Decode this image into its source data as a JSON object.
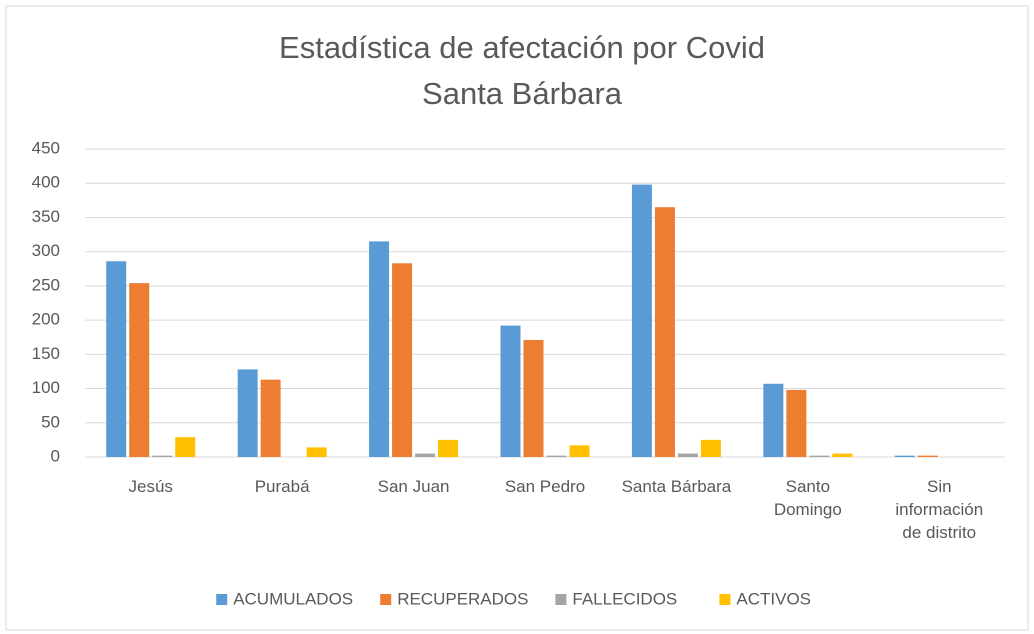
{
  "chart_data": {
    "type": "bar",
    "title": [
      "Estadística de afectación por Covid",
      "Santa Bárbara"
    ],
    "categories": [
      "Jesús",
      "Purabá",
      "San Juan",
      "San Pedro",
      "Santa Bárbara",
      "Santo Domingo",
      "Sin información de distrito"
    ],
    "series": [
      {
        "name": "ACUMULADOS",
        "color": "#5b9bd5",
        "values": [
          286,
          128,
          315,
          192,
          398,
          107,
          2
        ]
      },
      {
        "name": "RECUPERADOS",
        "color": "#ed7d31",
        "values": [
          254,
          113,
          283,
          171,
          365,
          98,
          2
        ]
      },
      {
        "name": "FALLECIDOS",
        "color": "#a5a5a5",
        "values": [
          2,
          0,
          5,
          2,
          5,
          2,
          0
        ]
      },
      {
        "name": "ACTIVOS",
        "color": "#ffc000",
        "values": [
          29,
          14,
          25,
          17,
          25,
          5,
          0
        ]
      }
    ],
    "ylim": [
      0,
      450
    ],
    "yticks": [
      0,
      50,
      100,
      150,
      200,
      250,
      300,
      350,
      400,
      450
    ],
    "grid": true,
    "legend": "bottom"
  }
}
